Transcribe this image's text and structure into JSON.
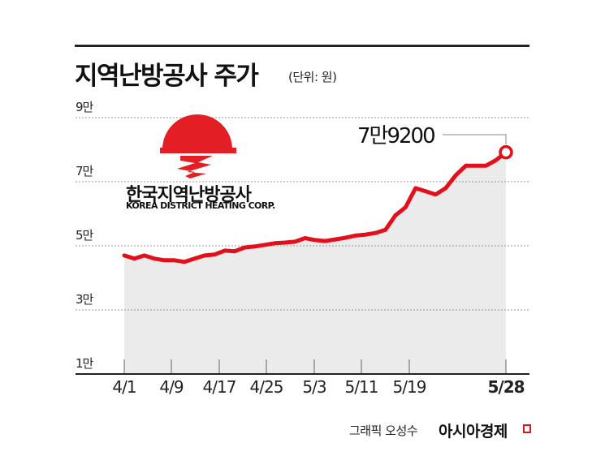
{
  "header": {
    "title": "지역난방공사 주가",
    "unit": "(단위: 원)"
  },
  "logo": {
    "korean": "한국지역난방공사",
    "english": "KOREA DISTRICT HEATING CORP.",
    "sun_color": "#e31e24"
  },
  "callout": {
    "label": "7만9200",
    "value": 79200
  },
  "footer": {
    "credit": "그래픽 오성수",
    "brand": "아시아경제"
  },
  "colors": {
    "line": "#e3101c",
    "area": "#ebebeb",
    "grid": "#999999",
    "axis": "#222222"
  },
  "chart_data": {
    "type": "line",
    "title": "지역난방공사 주가",
    "subtitle": "(단위: 원)",
    "xlabel": "",
    "ylabel": "",
    "ylim": [
      10000,
      90000
    ],
    "y_ticks": [
      {
        "value": 90000,
        "label": "9만"
      },
      {
        "value": 70000,
        "label": "7만"
      },
      {
        "value": 50000,
        "label": "5만"
      },
      {
        "value": 30000,
        "label": "3만"
      },
      {
        "value": 10000,
        "label": "1만"
      }
    ],
    "x_ticks": [
      "4/1",
      "4/9",
      "4/17",
      "4/25",
      "5/3",
      "5/11",
      "5/19",
      "5/28"
    ],
    "grid": "horizontal dotted",
    "series": [
      {
        "name": "지역난방공사 주가",
        "x": [
          "4/1",
          "4/2",
          "4/3",
          "4/4",
          "4/7",
          "4/8",
          "4/9",
          "4/10",
          "4/11",
          "4/14",
          "4/15",
          "4/16",
          "4/17",
          "4/18",
          "4/21",
          "4/22",
          "4/23",
          "4/24",
          "4/25",
          "4/28",
          "4/29",
          "4/30",
          "5/2",
          "5/7",
          "5/8",
          "5/9",
          "5/12",
          "5/13",
          "5/14",
          "5/15",
          "5/16",
          "5/19",
          "5/20",
          "5/21",
          "5/22",
          "5/23",
          "5/26",
          "5/27",
          "5/28"
        ],
        "values": [
          47000,
          46000,
          47000,
          46000,
          45500,
          45500,
          45000,
          46000,
          47000,
          47300,
          48500,
          48300,
          49500,
          49800,
          50300,
          50800,
          51000,
          51300,
          52400,
          51800,
          51500,
          52000,
          52500,
          53200,
          53500,
          54000,
          55000,
          59500,
          62000,
          68000,
          67000,
          66000,
          68000,
          72000,
          75000,
          75000,
          75000,
          76700,
          79200
        ]
      }
    ],
    "annotations": [
      {
        "x": "5/28",
        "value": 79200,
        "label": "7만9200"
      }
    ],
    "legend": "none"
  }
}
